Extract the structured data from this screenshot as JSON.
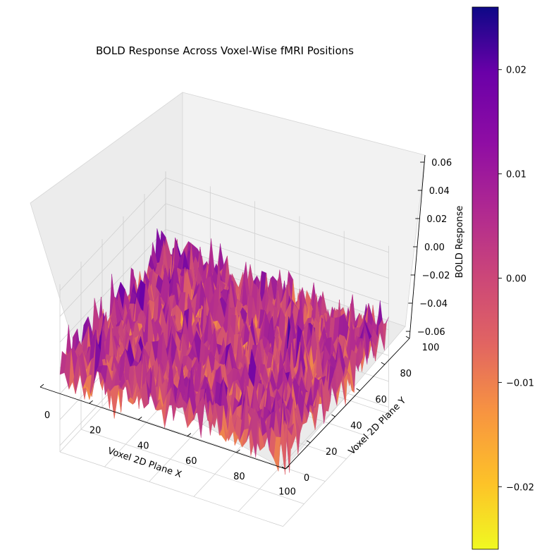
{
  "chart_data": {
    "type": "surface3d",
    "title": "BOLD Response Across Voxel-Wise fMRI Positions",
    "xlabel": "Voxel 2D Plane X",
    "ylabel": "Voxel 2D Plane Y",
    "zlabel": "BOLD Response",
    "xlim": [
      0,
      100
    ],
    "ylim": [
      0,
      100
    ],
    "zlim": [
      -0.065,
      0.065
    ],
    "x_ticks": [
      "0",
      "20",
      "40",
      "60",
      "80",
      "100"
    ],
    "y_ticks": [
      "0",
      "20",
      "40",
      "60",
      "80",
      "100"
    ],
    "z_ticks": [
      "−0.06",
      "−0.04",
      "−0.02",
      "0.00",
      "0.02",
      "0.04",
      "0.06"
    ],
    "colormap": "plasma (reversed: yellow = low, dark blue = high)",
    "colorbar": {
      "range": [
        -0.026,
        0.026
      ],
      "ticks": [
        "−0.02",
        "−0.01",
        "0.00",
        "0.01",
        "0.02"
      ]
    },
    "surface": {
      "grid_points_per_axis": 50,
      "distribution": "approximately zero-mean random noise",
      "typical_range": [
        -0.03,
        0.03
      ],
      "extreme_range": [
        -0.06,
        0.065
      ]
    },
    "grid": true
  }
}
